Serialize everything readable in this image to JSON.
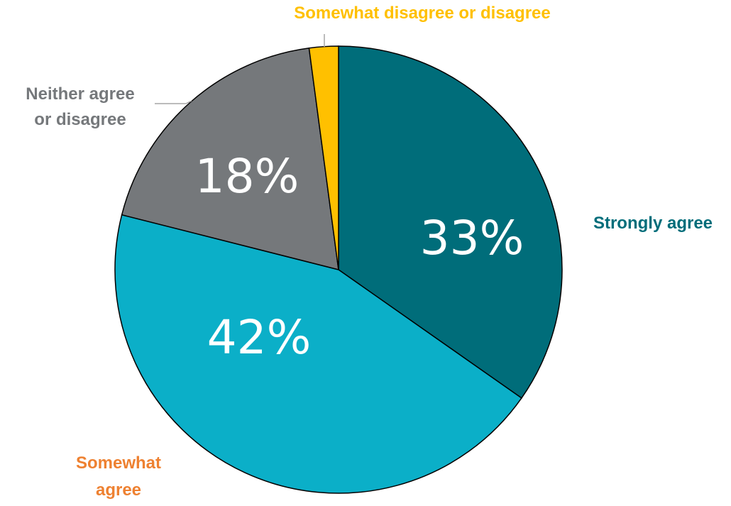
{
  "chart_data": {
    "type": "pie",
    "title": "",
    "categories": [
      "Strongly agree",
      "Somewhat agree",
      "Neither agree or disagree",
      "Somewhat disagree or disagree"
    ],
    "values": [
      33,
      42,
      18,
      2
    ],
    "value_labels": [
      "33%",
      "42%",
      "18%",
      ""
    ],
    "colors": [
      "#006D7A",
      "#0BAFC8",
      "#75787B",
      "#FFC000"
    ],
    "label_colors": [
      "#006D7A",
      "#EE8131",
      "#75787B",
      "#FFC000"
    ],
    "label_lines": {
      "Strongly agree": [
        "Strongly agree"
      ],
      "Somewhat agree": [
        "Somewhat",
        "agree"
      ],
      "Neither agree or disagree": [
        "Neither agree",
        "or disagree"
      ],
      "Somewhat disagree or disagree": [
        "Somewhat disagree or disagree"
      ]
    },
    "start_angle": "12 o'clock",
    "direction": "clockwise",
    "legend": "none"
  }
}
